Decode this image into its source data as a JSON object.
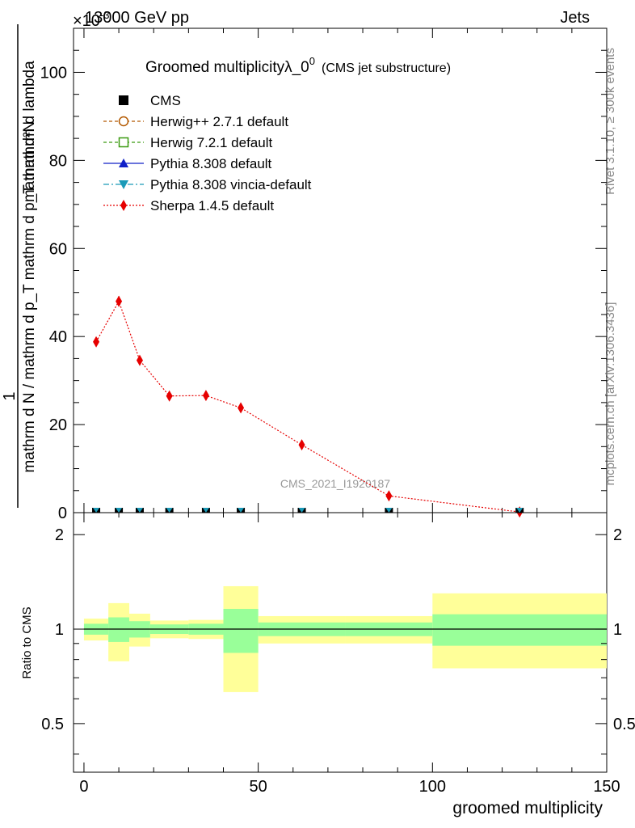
{
  "chart_data": {
    "type": "scatter",
    "header_left": "13000 GeV pp",
    "header_right": "Jets",
    "title": "Groomed multiplicityλ_0",
    "title_sup": "0",
    "title_suffix": "(CMS jet substructure)",
    "multiplier": "×10",
    "multiplier_exp": "-3",
    "ylabel_top": "1",
    "ylabel_numerator": "mathrm d²N",
    "ylabel_denominator": "mathrm d N / mathrm d p_T mathrm d p_T mathrm d lambda",
    "xlabel": "groomed multiplicity",
    "ratio_ylabel": "Ratio to CMS",
    "watermark": "CMS_2021_I1920187",
    "side_right_top": "Rivet 3.1.10, ≥ 300k events",
    "side_right_bottom": "mcplots.cern.ch [arXiv:1306.3436]",
    "xlim": [
      -3,
      150
    ],
    "ylim": [
      0,
      110
    ],
    "ratio_ylim": [
      0.35,
      2.35
    ],
    "x_ticks": [
      "0",
      "50",
      "100",
      "150"
    ],
    "y_ticks": [
      "20",
      "40",
      "60",
      "80",
      "100"
    ],
    "ratio_ticks": [
      "0.5",
      "1",
      "2"
    ],
    "legend": [
      {
        "name": "CMS",
        "color": "#000000"
      },
      {
        "name": "Herwig++ 2.7.1 default",
        "color": "#b35900"
      },
      {
        "name": "Herwig 7.2.1 default",
        "color": "#3a9a10"
      },
      {
        "name": "Pythia 8.308 default",
        "color": "#1020c8"
      },
      {
        "name": "Pythia 8.308 vincia-default",
        "color": "#1a9ab8"
      },
      {
        "name": "Sherpa 1.4.5 default",
        "color": "#e60000"
      }
    ],
    "bins": [
      [
        0,
        7
      ],
      [
        7,
        13
      ],
      [
        13,
        19
      ],
      [
        19,
        30
      ],
      [
        30,
        40
      ],
      [
        40,
        50
      ],
      [
        50,
        75
      ],
      [
        75,
        100
      ],
      [
        100,
        150
      ]
    ],
    "x": [
      3.5,
      10,
      16,
      24.5,
      35,
      45,
      62.5,
      87.5,
      125
    ],
    "series": [
      {
        "name": "Sherpa 1.4.5 default",
        "values": [
          38.8,
          48.0,
          34.6,
          26.5,
          26.6,
          23.8,
          15.4,
          3.8,
          0.15
        ],
        "errors": [
          1.0,
          1.2,
          1.0,
          0.6,
          0.6,
          0.6,
          0.4,
          0.2,
          0.05
        ]
      },
      {
        "name": "CMS",
        "values": [
          0,
          0,
          0,
          0,
          0,
          0,
          0,
          0,
          0
        ]
      }
    ],
    "ratio_band_green": [
      [
        0.96,
        1.04
      ],
      [
        0.91,
        1.09
      ],
      [
        0.94,
        1.06
      ],
      [
        0.965,
        1.035
      ],
      [
        0.96,
        1.04
      ],
      [
        0.84,
        1.16
      ],
      [
        0.95,
        1.05
      ],
      [
        0.95,
        1.05
      ],
      [
        0.885,
        1.115
      ]
    ],
    "ratio_band_yellow": [
      [
        0.92,
        1.08
      ],
      [
        0.79,
        1.21
      ],
      [
        0.88,
        1.12
      ],
      [
        0.935,
        1.065
      ],
      [
        0.93,
        1.07
      ],
      [
        0.63,
        1.37
      ],
      [
        0.9,
        1.1
      ],
      [
        0.9,
        1.1
      ],
      [
        0.75,
        1.3
      ]
    ]
  }
}
